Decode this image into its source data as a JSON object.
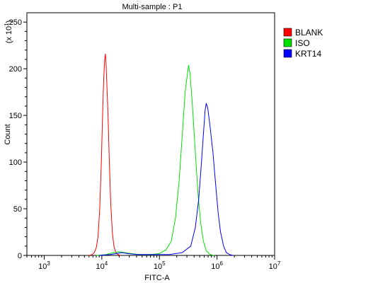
{
  "chart_data": {
    "type": "line",
    "title": "Multi-sample : P1",
    "xlabel": "FITC-A",
    "ylabel": "Count",
    "y_multiplier": "(x 10",
    "y_multiplier_exp": "1",
    "y_multiplier_close": ")",
    "x_scale": "log",
    "xlim": [
      500,
      10000000
    ],
    "ylim": [
      0,
      260
    ],
    "x_ticks": [
      {
        "base": "10",
        "exp": "3",
        "value": 1000
      },
      {
        "base": "10",
        "exp": "4",
        "value": 10000
      },
      {
        "base": "10",
        "exp": "5",
        "value": 100000
      },
      {
        "base": "10",
        "exp": "6",
        "value": 1000000
      },
      {
        "base": "10",
        "exp": "7",
        "value": 10000000
      }
    ],
    "y_ticks": [
      "0",
      "50",
      "100",
      "150",
      "200",
      "250"
    ],
    "grid": false,
    "legend_position": "right",
    "series": [
      {
        "name": "BLANK",
        "color": "#ff0000",
        "points": [
          [
            6000,
            0
          ],
          [
            6800,
            1
          ],
          [
            7400,
            3
          ],
          [
            8000,
            8
          ],
          [
            8600,
            20
          ],
          [
            9200,
            50
          ],
          [
            9800,
            100
          ],
          [
            10300,
            150
          ],
          [
            10800,
            190
          ],
          [
            11200,
            210
          ],
          [
            11500,
            216
          ],
          [
            11800,
            208
          ],
          [
            12200,
            185
          ],
          [
            12800,
            150
          ],
          [
            13500,
            100
          ],
          [
            14300,
            55
          ],
          [
            15200,
            25
          ],
          [
            16200,
            10
          ],
          [
            17500,
            3
          ],
          [
            19000,
            1
          ],
          [
            21000,
            0
          ]
        ]
      },
      {
        "name": "ISO",
        "color": "#00e000",
        "points": [
          [
            8000,
            0
          ],
          [
            12000,
            1
          ],
          [
            16000,
            3
          ],
          [
            20000,
            4
          ],
          [
            25000,
            3
          ],
          [
            32000,
            2
          ],
          [
            45000,
            1
          ],
          [
            70000,
            1
          ],
          [
            100000,
            2
          ],
          [
            130000,
            6
          ],
          [
            160000,
            15
          ],
          [
            190000,
            40
          ],
          [
            220000,
            80
          ],
          [
            250000,
            130
          ],
          [
            280000,
            175
          ],
          [
            300000,
            190
          ],
          [
            320000,
            204
          ],
          [
            340000,
            195
          ],
          [
            370000,
            165
          ],
          [
            420000,
            110
          ],
          [
            470000,
            65
          ],
          [
            520000,
            35
          ],
          [
            580000,
            15
          ],
          [
            650000,
            5
          ],
          [
            750000,
            1
          ],
          [
            900000,
            0
          ]
        ]
      },
      {
        "name": "KRT14",
        "color": "#0000ff",
        "points": [
          [
            9000,
            0
          ],
          [
            14000,
            1
          ],
          [
            18000,
            2
          ],
          [
            22000,
            3
          ],
          [
            28000,
            2
          ],
          [
            40000,
            1
          ],
          [
            80000,
            1
          ],
          [
            150000,
            1
          ],
          [
            250000,
            3
          ],
          [
            350000,
            10
          ],
          [
            420000,
            30
          ],
          [
            480000,
            60
          ],
          [
            530000,
            95
          ],
          [
            580000,
            130
          ],
          [
            620000,
            155
          ],
          [
            650000,
            163
          ],
          [
            690000,
            158
          ],
          [
            750000,
            140
          ],
          [
            850000,
            110
          ],
          [
            950000,
            75
          ],
          [
            1050000,
            45
          ],
          [
            1150000,
            25
          ],
          [
            1300000,
            10
          ],
          [
            1450000,
            3
          ],
          [
            1650000,
            1
          ],
          [
            1900000,
            0
          ]
        ]
      }
    ]
  }
}
